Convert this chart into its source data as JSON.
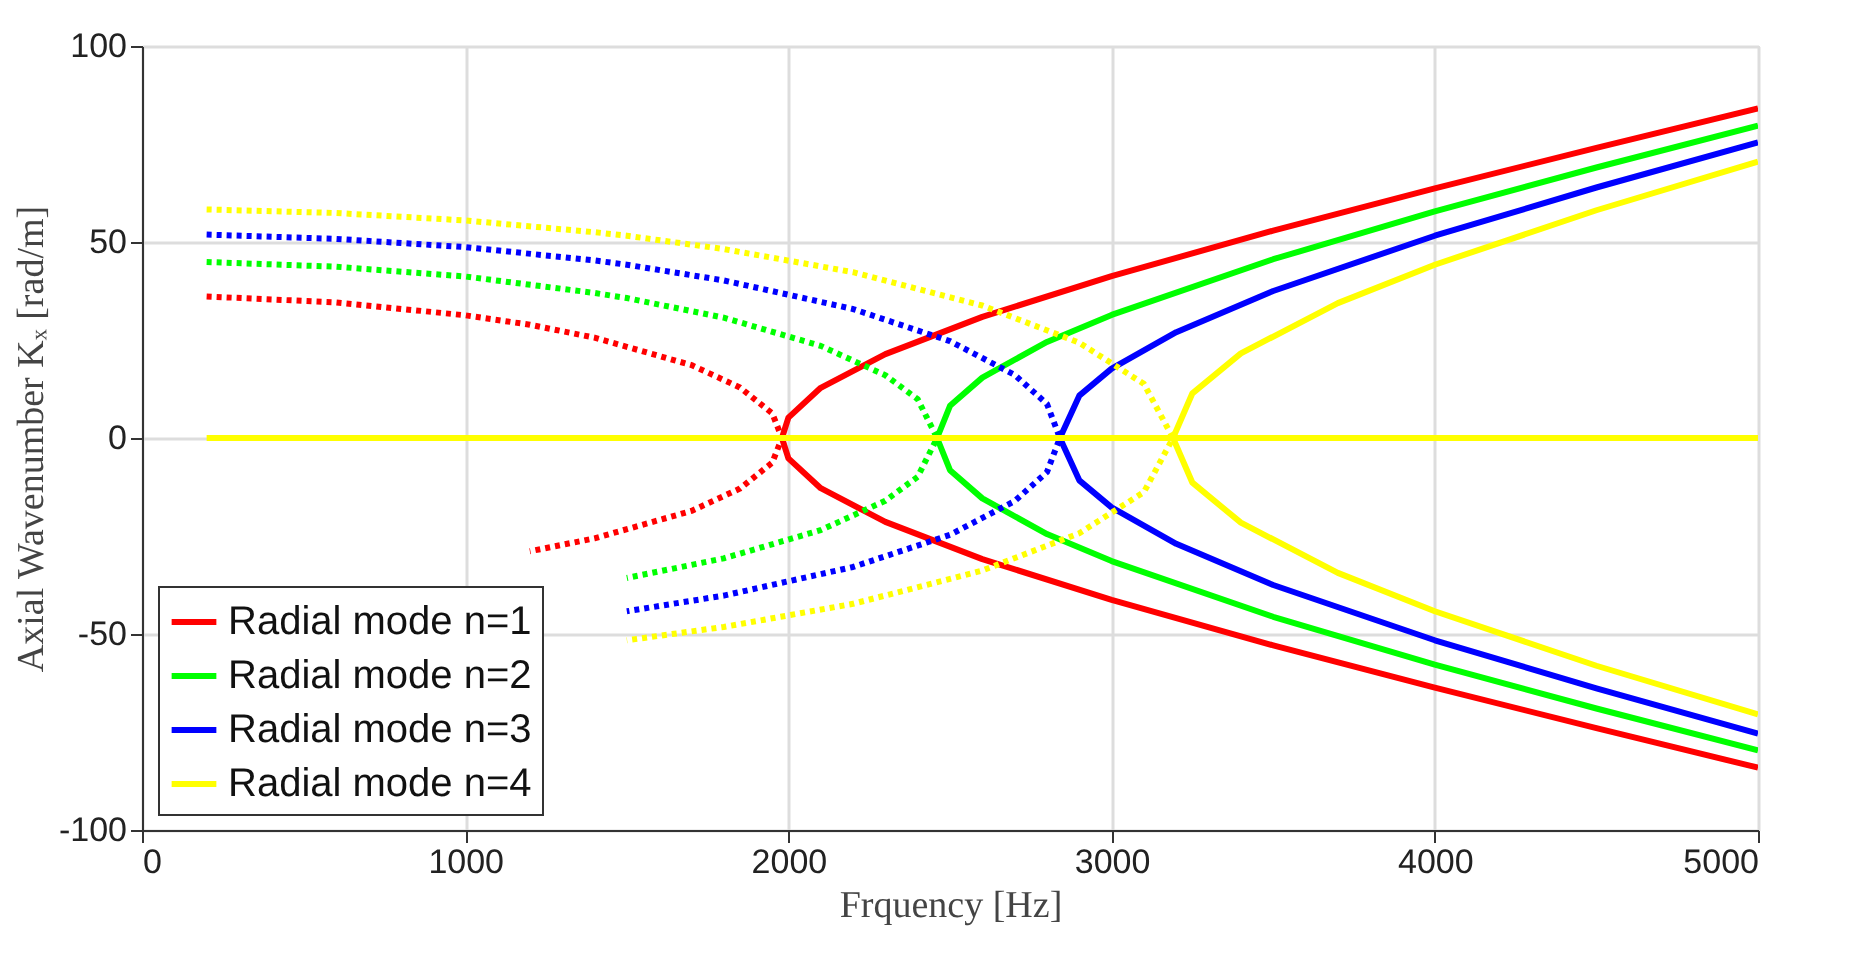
{
  "chart_data": {
    "type": "line",
    "xlabel": "Frquency [Hz]",
    "ylabel": "Axial Wavenumber Kₓ [rad/m]",
    "xlim": [
      0,
      5000
    ],
    "ylim": [
      -100,
      100
    ],
    "xticks": [
      0,
      1000,
      2000,
      3000,
      4000,
      5000
    ],
    "yticks": [
      -100,
      -50,
      0,
      50,
      100
    ],
    "grid": true,
    "legend": "bottom left",
    "series": [
      {
        "name": "Radial mode n=1",
        "color": "#ff0000",
        "line_style": "solid",
        "x": [
          5000,
          4500,
          4000,
          3500,
          3000,
          2600,
          2300,
          2100,
          2000,
          1980,
          2000,
          2100,
          2300,
          2600,
          3000,
          3500,
          4000,
          4500,
          5000
        ],
        "values": [
          84.1,
          74.0,
          63.7,
          52.9,
          41.3,
          30.9,
          21.4,
          12.8,
          5.2,
          0,
          -5.2,
          -12.8,
          -21.4,
          -30.9,
          -41.3,
          -52.9,
          -63.7,
          -74.0,
          -84.1
        ]
      },
      {
        "color": "#ff0000",
        "line_style": "dotted",
        "x": [
          200,
          600,
          1000,
          1200,
          1400,
          1700,
          1850,
          1950,
          1980,
          1950,
          1850,
          1700,
          1400,
          1200
        ],
        "values": [
          36.1,
          34.6,
          31.3,
          28.9,
          25.6,
          18.6,
          12.9,
          6.3,
          0,
          -6.3,
          -12.9,
          -18.6,
          -25.6,
          -28.9
        ]
      },
      {
        "name": "Radial mode n=2",
        "color": "#00ff00",
        "line_style": "solid",
        "x": [
          5000,
          4500,
          4000,
          3500,
          3000,
          2800,
          2600,
          2500,
          2460,
          2500,
          2600,
          2800,
          3000,
          3500,
          4000,
          4500,
          5000
        ],
        "values": [
          79.7,
          69.0,
          57.8,
          45.6,
          31.4,
          24.5,
          15.4,
          8.2,
          0,
          -8.2,
          -15.4,
          -24.5,
          -31.4,
          -45.6,
          -57.8,
          -69.0,
          -79.7
        ]
      },
      {
        "color": "#00ff00",
        "line_style": "dotted",
        "x": [
          200,
          600,
          1000,
          1400,
          1500,
          1800,
          2100,
          2300,
          2400,
          2460,
          2400,
          2300,
          2100,
          1800,
          1500
        ],
        "values": [
          44.9,
          43.7,
          41.2,
          37.0,
          35.7,
          30.7,
          23.5,
          16.0,
          9.9,
          0,
          -9.9,
          -16.0,
          -23.5,
          -30.7,
          -35.7
        ]
      },
      {
        "name": "Radial mode n=3",
        "color": "#0000ff",
        "line_style": "solid",
        "x": [
          5000,
          4500,
          4000,
          3500,
          3200,
          3000,
          2900,
          2840,
          2900,
          3000,
          3200,
          3500,
          4000,
          4500,
          5000
        ],
        "values": [
          75.4,
          63.9,
          51.6,
          37.5,
          27.0,
          17.7,
          10.8,
          0,
          -10.8,
          -17.7,
          -27.0,
          -37.5,
          -51.6,
          -63.9,
          -75.4
        ]
      },
      {
        "color": "#0000ff",
        "line_style": "dotted",
        "x": [
          200,
          600,
          1000,
          1400,
          1500,
          1800,
          2200,
          2500,
          2700,
          2800,
          2840,
          2800,
          2700,
          2500,
          2200,
          1800,
          1500
        ],
        "values": [
          51.9,
          50.8,
          48.7,
          45.3,
          44.2,
          40.2,
          32.9,
          24.7,
          16.1,
          8.7,
          0,
          -8.7,
          -16.1,
          -24.7,
          -32.9,
          -40.2,
          -44.2
        ]
      },
      {
        "name": "Radial mode n=4",
        "color": "#ffff00",
        "line_style": "solid",
        "x": [
          5000,
          4500,
          4000,
          3700,
          3400,
          3250,
          3190,
          3250,
          3400,
          3700,
          4000,
          4500,
          5000
        ],
        "values": [
          70.5,
          58.1,
          44.2,
          34.4,
          21.6,
          11.4,
          0,
          -11.4,
          -21.6,
          -34.4,
          -44.2,
          -58.1,
          -70.5
        ]
      },
      {
        "color": "#ffff00",
        "line_style": "dotted",
        "x": [
          200,
          600,
          1000,
          1400,
          1500,
          1800,
          2200,
          2600,
          2900,
          3100,
          3190,
          3100,
          2900,
          2600,
          2200,
          1800,
          1500
        ],
        "values": [
          58.3,
          57.4,
          55.5,
          52.5,
          51.6,
          48.2,
          42.3,
          33.8,
          24.3,
          13.8,
          0,
          -13.8,
          -24.3,
          -33.8,
          -42.3,
          -48.2,
          -51.6
        ]
      },
      {
        "color": "#ffff00",
        "line_style": "solid",
        "x": [
          200,
          5000
        ],
        "values": [
          0,
          0
        ]
      }
    ]
  }
}
